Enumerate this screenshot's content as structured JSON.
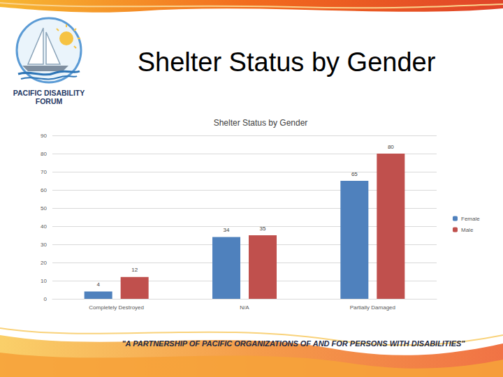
{
  "header": {
    "title": "Shelter Status by Gender",
    "logo_text": "PACIFIC DISABILITY FORUM"
  },
  "chart_data": {
    "type": "bar",
    "title": "Shelter Status by Gender",
    "categories": [
      "Completely Destroyed",
      "N/A",
      "Partially Damaged"
    ],
    "series": [
      {
        "name": "Female",
        "color": "#4f81bd",
        "values": [
          4,
          34,
          65
        ]
      },
      {
        "name": "Male",
        "color": "#c0504d",
        "values": [
          12,
          35,
          80
        ]
      }
    ],
    "ylim": [
      0,
      90
    ],
    "yticks": [
      0,
      10,
      20,
      30,
      40,
      50,
      60,
      70,
      80,
      90
    ],
    "grid": true,
    "legend": "right",
    "data_labels": true
  },
  "footer": {
    "text": "\"A PARTNERSHIP OF PACIFIC ORGANIZATIONS OF AND FOR PERSONS WITH DISABILITIES\""
  }
}
